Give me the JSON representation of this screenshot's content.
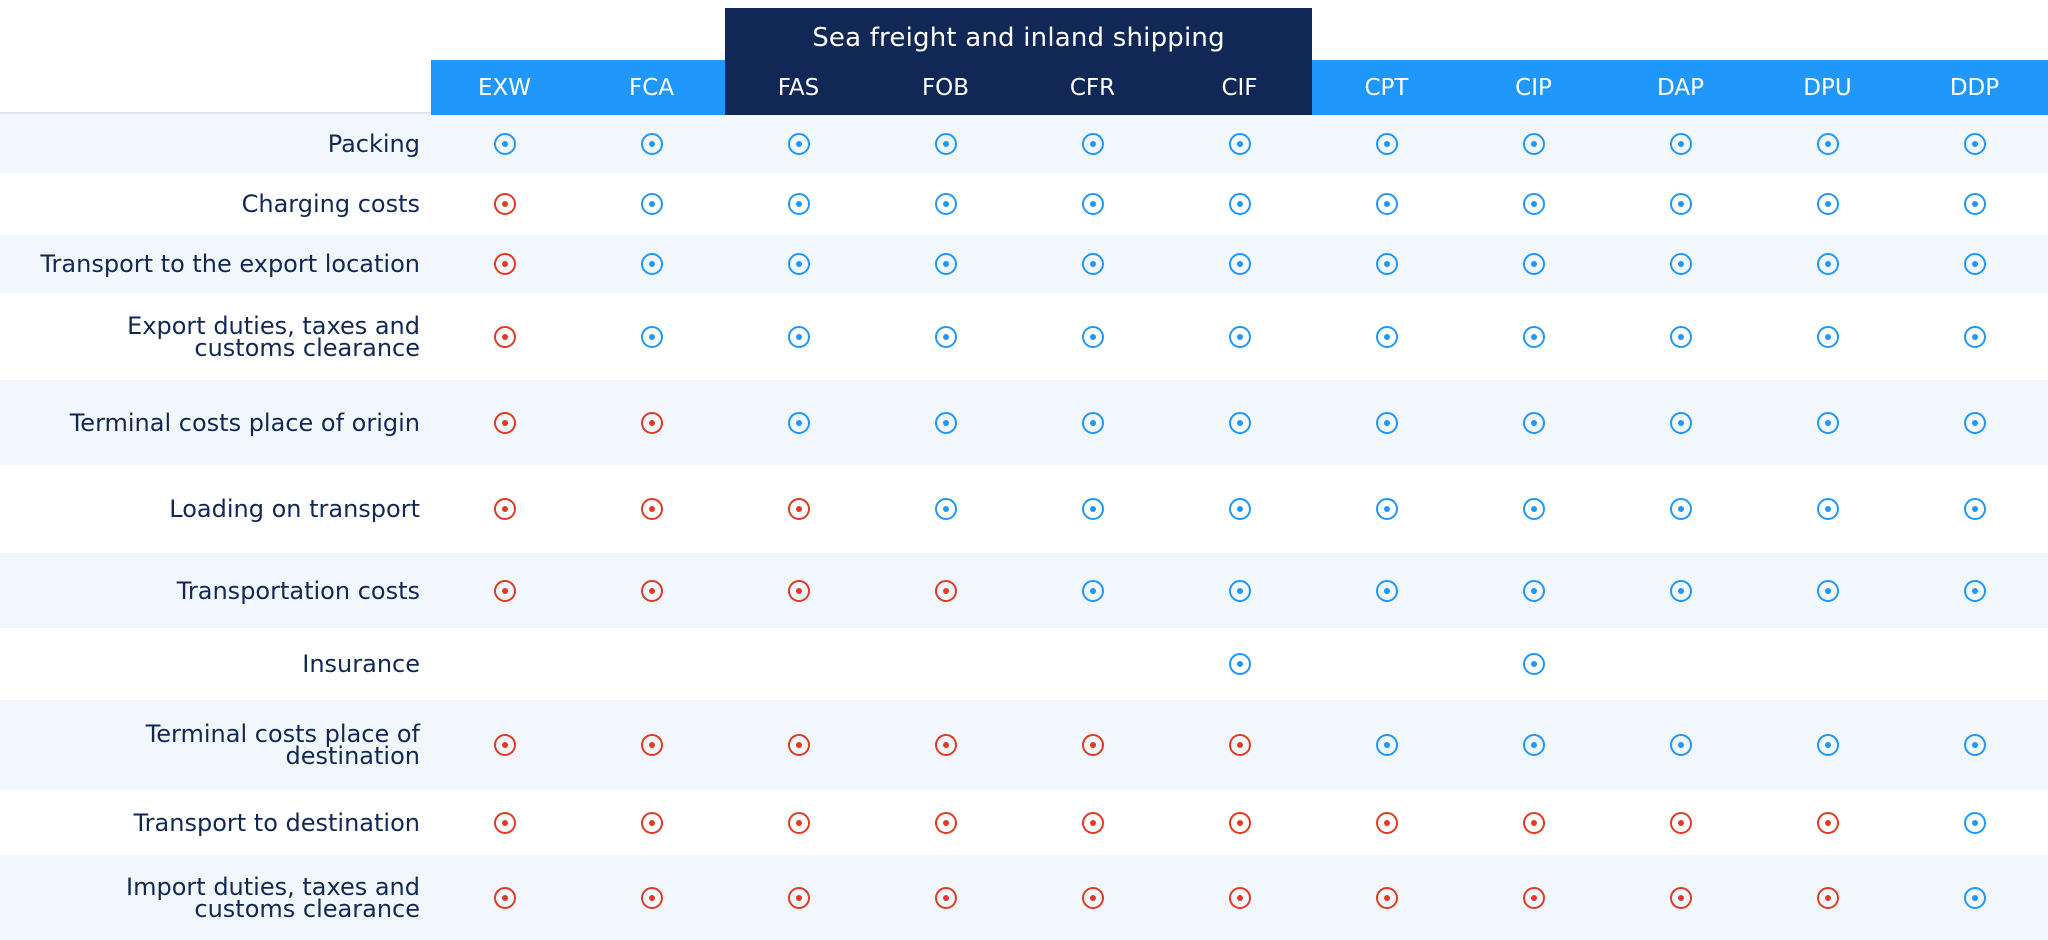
{
  "table": {
    "group_header": "Sea freight and inland shipping",
    "columns": [
      "EXW",
      "FCA",
      "FAS",
      "FOB",
      "CFR",
      "CIF",
      "CPT",
      "CIP",
      "DAP",
      "DPU",
      "DDP"
    ],
    "rows": [
      {
        "label": "Packing",
        "cells": [
          "B",
          "B",
          "B",
          "B",
          "B",
          "B",
          "B",
          "B",
          "B",
          "B",
          "B"
        ]
      },
      {
        "label": "Charging costs",
        "cells": [
          "S",
          "B",
          "B",
          "B",
          "B",
          "B",
          "B",
          "B",
          "B",
          "B",
          "B"
        ]
      },
      {
        "label": "Transport to the export location",
        "cells": [
          "S",
          "B",
          "B",
          "B",
          "B",
          "B",
          "B",
          "B",
          "B",
          "B",
          "B"
        ]
      },
      {
        "label": "Export duties, taxes and\ncustoms clearance",
        "cells": [
          "S",
          "B",
          "B",
          "B",
          "B",
          "B",
          "B",
          "B",
          "B",
          "B",
          "B"
        ]
      },
      {
        "label": "Terminal costs place of origin",
        "cells": [
          "S",
          "S",
          "B",
          "B",
          "B",
          "B",
          "B",
          "B",
          "B",
          "B",
          "B"
        ]
      },
      {
        "label": "Loading on transport",
        "cells": [
          "S",
          "S",
          "S",
          "B",
          "B",
          "B",
          "B",
          "B",
          "B",
          "B",
          "B"
        ]
      },
      {
        "label": "Transportation costs",
        "cells": [
          "S",
          "S",
          "S",
          "S",
          "B",
          "B",
          "B",
          "B",
          "B",
          "B",
          "B"
        ]
      },
      {
        "label": "Insurance",
        "cells": [
          "",
          "",
          "",
          "",
          "",
          "B",
          "",
          "B",
          "",
          "",
          ""
        ]
      },
      {
        "label": "Terminal costs place of\ndestination",
        "cells": [
          "S",
          "S",
          "S",
          "S",
          "S",
          "S",
          "B",
          "B",
          "B",
          "B",
          "B"
        ]
      },
      {
        "label": "Transport to destination",
        "cells": [
          "S",
          "S",
          "S",
          "S",
          "S",
          "S",
          "S",
          "S",
          "S",
          "S",
          "B"
        ]
      },
      {
        "label": "Import duties, taxes and\ncustoms clearance",
        "cells": [
          "S",
          "S",
          "S",
          "S",
          "S",
          "S",
          "S",
          "S",
          "S",
          "S",
          "B"
        ]
      }
    ]
  },
  "colors": {
    "header_blue": "#2097fb",
    "header_navy": "#112856",
    "mark_blue": "#2097fb",
    "mark_red": "#e23a22",
    "row_shade": "#f1f7fd"
  }
}
